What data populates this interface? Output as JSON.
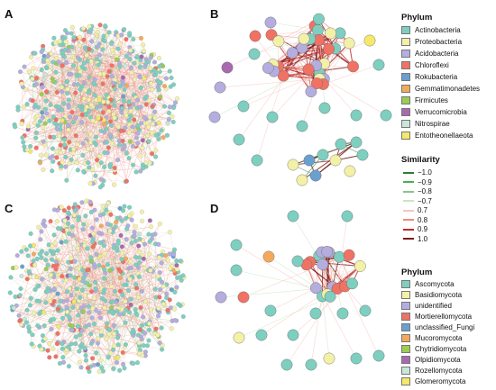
{
  "panels": {
    "a": "A",
    "b": "B",
    "c": "C",
    "d": "D"
  },
  "phylum_bacteria": {
    "title": "Phylum",
    "items": [
      {
        "label": "Actinobacteria",
        "color": "#7ecfc0"
      },
      {
        "label": "Proteobacteria",
        "color": "#f3f0a8"
      },
      {
        "label": "Acidobacteria",
        "color": "#b3aede"
      },
      {
        "label": "Chloroflexi",
        "color": "#f07264"
      },
      {
        "label": "Rokubacteria",
        "color": "#6aa0cf"
      },
      {
        "label": "Gemmatimonadetes",
        "color": "#f4a95a"
      },
      {
        "label": "Firmicutes",
        "color": "#9ccc52"
      },
      {
        "label": "Verrucomicrobia",
        "color": "#a76aaf"
      },
      {
        "label": "Nitrospirae",
        "color": "#c9e6d8"
      },
      {
        "label": "Entotheonellaeota",
        "color": "#f5e86a"
      }
    ]
  },
  "similarity": {
    "title": "Similarity",
    "items": [
      {
        "label": "−1.0",
        "color": "#2e7d32"
      },
      {
        "label": "−0.9",
        "color": "#4caf50"
      },
      {
        "label": "−0.8",
        "color": "#8bc48a"
      },
      {
        "label": "−0.7",
        "color": "#c8e6c0"
      },
      {
        "label": "0.7",
        "color": "#f7c6c0"
      },
      {
        "label": "0.8",
        "color": "#ee8a80"
      },
      {
        "label": "0.9",
        "color": "#c62828"
      },
      {
        "label": "1.0",
        "color": "#7b1c1c"
      }
    ]
  },
  "phylum_fungi": {
    "title": "Phylum",
    "items": [
      {
        "label": "Ascomycota",
        "color": "#7ecfc0"
      },
      {
        "label": "Basidiomycota",
        "color": "#f3f0a8"
      },
      {
        "label": "unidentified",
        "color": "#b3aede"
      },
      {
        "label": "Mortierellomycota",
        "color": "#f07264"
      },
      {
        "label": "unclassified_Fungi",
        "color": "#6aa0cf"
      },
      {
        "label": "Mucoromycota",
        "color": "#f4a95a"
      },
      {
        "label": "Chytridiomycota",
        "color": "#9ccc52"
      },
      {
        "label": "Olpidiomycota",
        "color": "#a76aaf"
      },
      {
        "label": "Rozellomycota",
        "color": "#c9e6d8"
      },
      {
        "label": "Glomeromycota",
        "color": "#f5e86a"
      }
    ]
  }
}
